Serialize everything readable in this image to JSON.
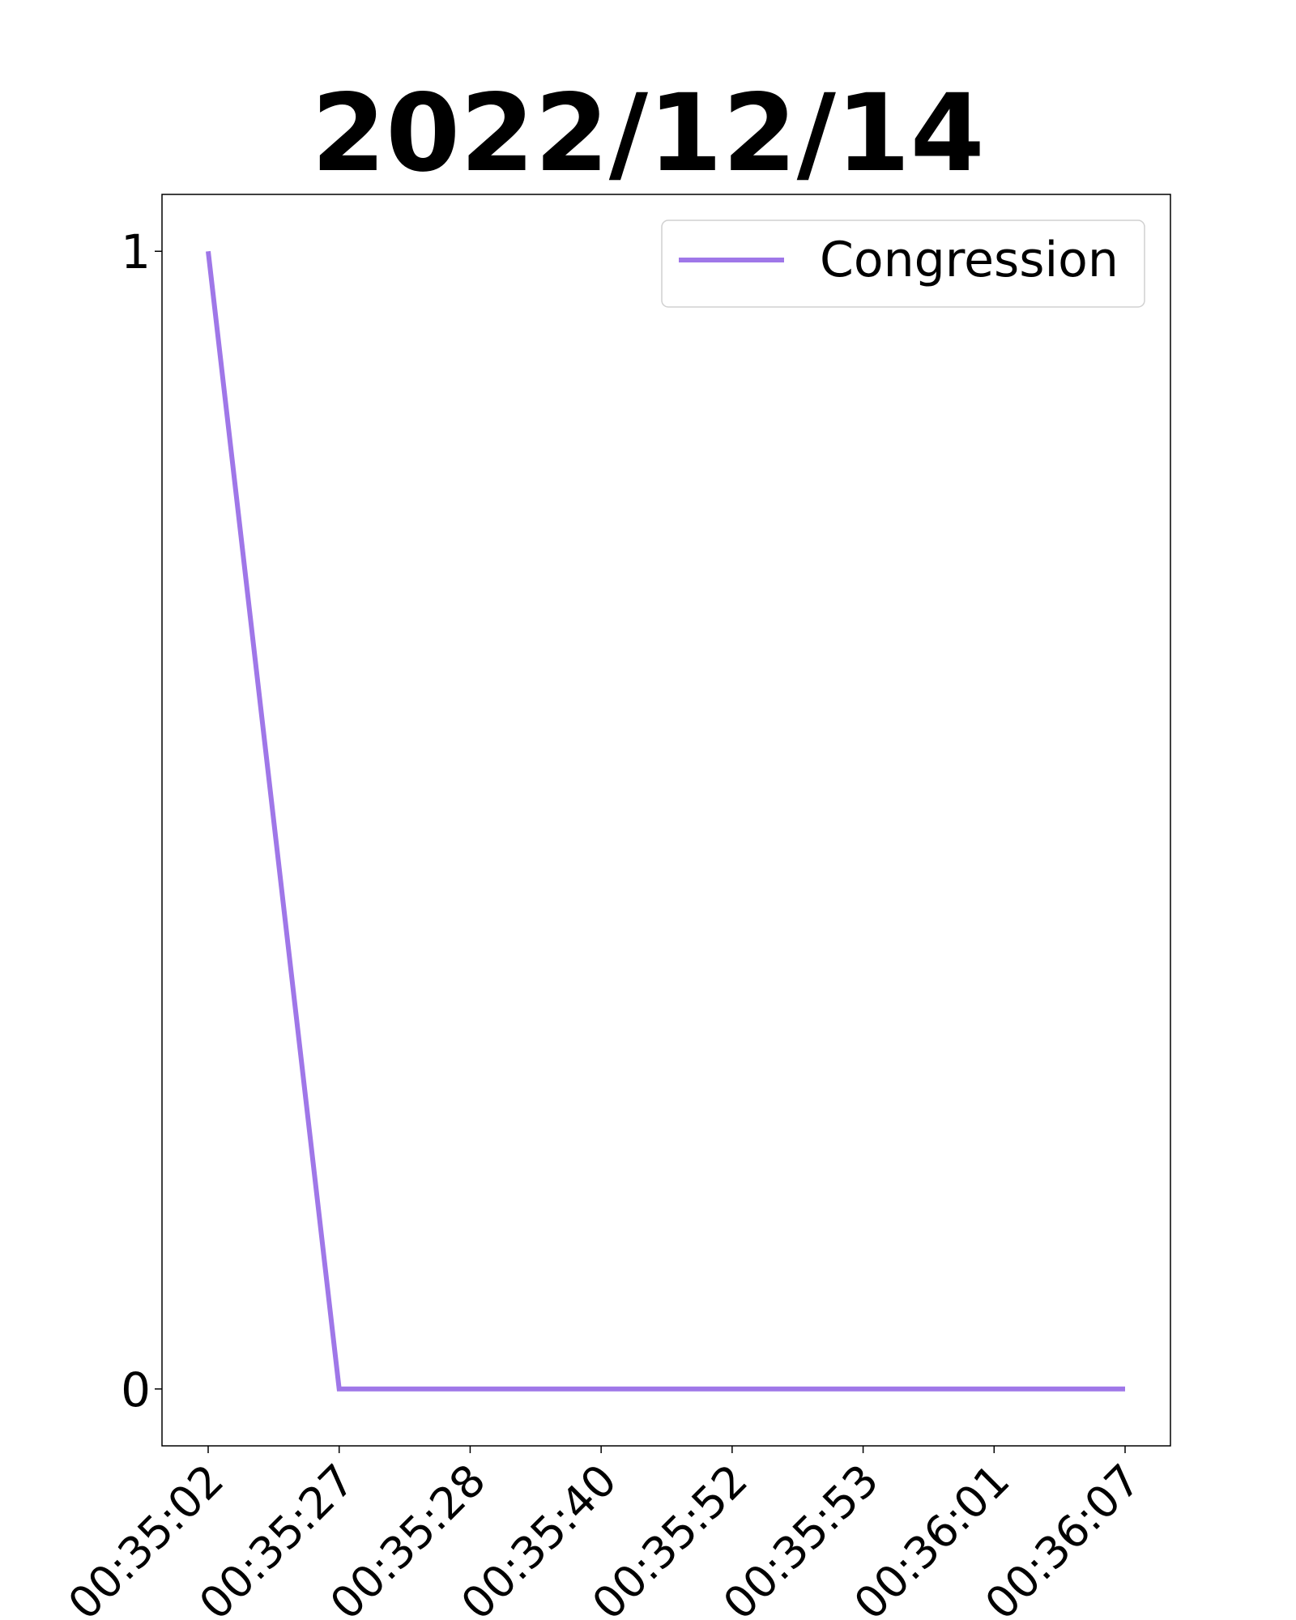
{
  "chart_data": {
    "type": "line",
    "title": "2022/12/14",
    "xlabel": "",
    "ylabel": "",
    "categories": [
      "00:35:02",
      "00:35:27",
      "00:35:28",
      "00:35:40",
      "00:35:52",
      "00:35:53",
      "00:36:01",
      "00:36:07"
    ],
    "series": [
      {
        "name": "Congression",
        "values": [
          1,
          0,
          0,
          0,
          0,
          0,
          0,
          0
        ],
        "color": "#9f77e8"
      }
    ],
    "yticks": [
      0,
      1
    ],
    "ylim": [
      -0.05,
      1.05
    ],
    "grid": false,
    "legend_position": "top-right"
  }
}
